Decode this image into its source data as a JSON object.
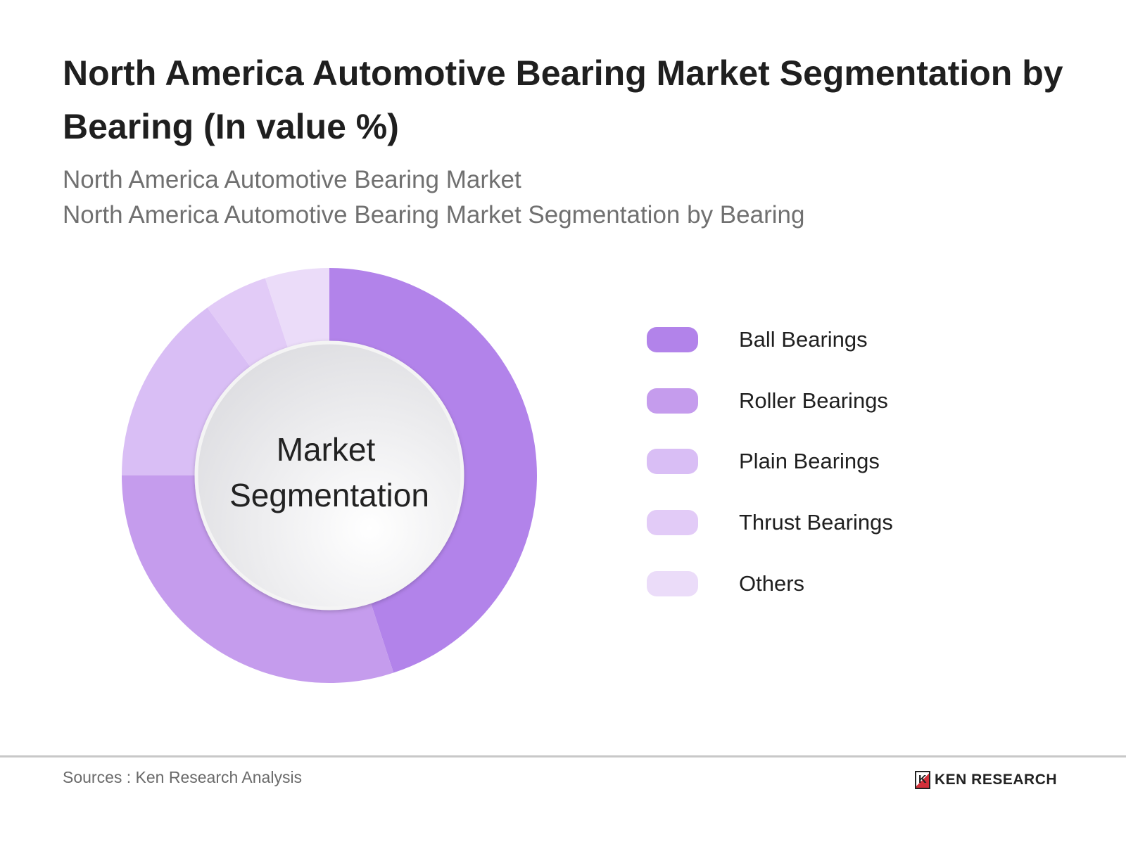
{
  "title": "North America Automotive Bearing Market Segmentation by Bearing (In value %)",
  "subtitle_1": "North America Automotive Bearing Market",
  "subtitle_2": "North America Automotive Bearing Market Segmentation by Bearing",
  "chart_data": {
    "type": "pie",
    "variant": "donut",
    "center_label": [
      "Market",
      "Segmentation"
    ],
    "categories": [
      "Ball Bearings",
      "Roller Bearings",
      "Plain Bearings",
      "Thrust Bearings",
      "Others"
    ],
    "values": [
      45,
      30,
      15,
      5,
      5
    ],
    "unit": "%",
    "colors": [
      "#b283ea",
      "#c59ced",
      "#d9bef5",
      "#e2cbf7",
      "#ebdcf9"
    ],
    "legend_position": "right"
  },
  "footer": {
    "sources": "Sources : Ken Research Analysis",
    "logo_text": "KEN RESEARCH"
  }
}
